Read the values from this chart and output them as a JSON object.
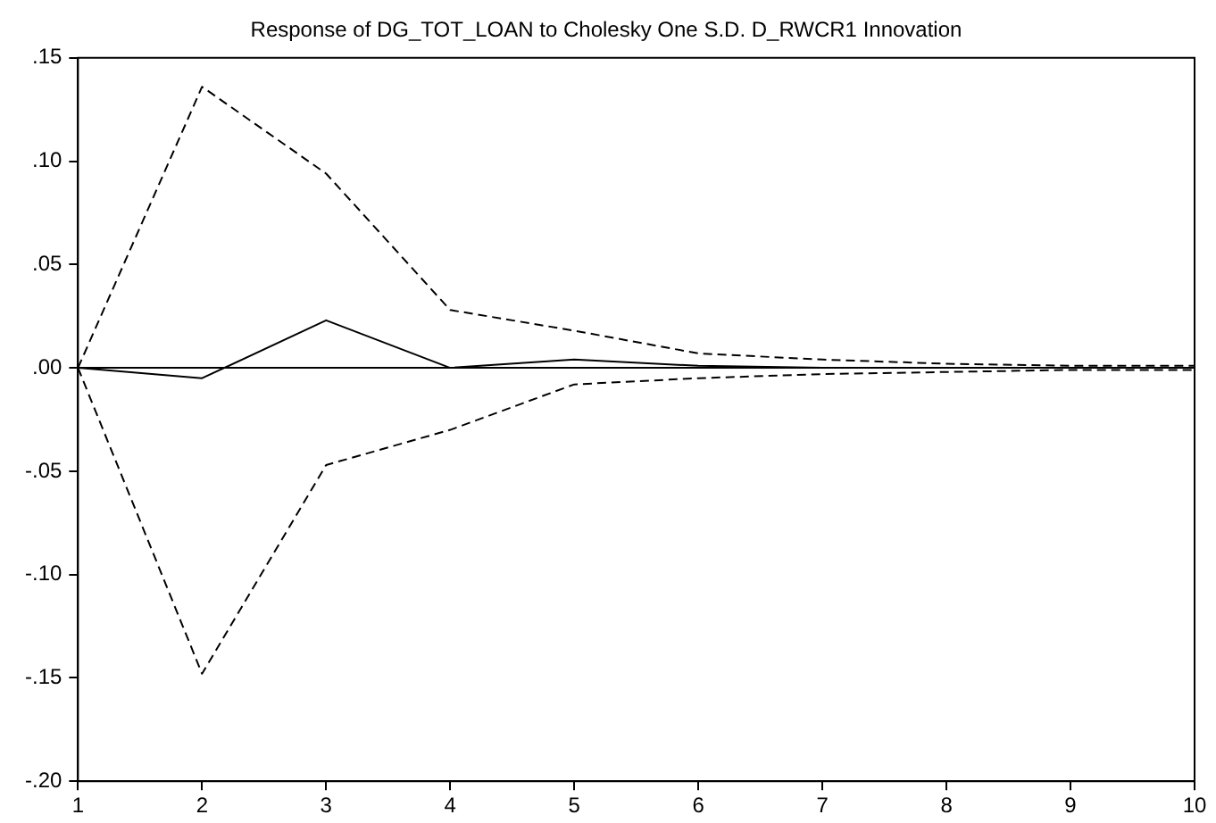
{
  "chart_data": {
    "type": "line",
    "title": "Response of DG_TOT_LOAN to Cholesky One S.D. D_RWCR1 Innovation",
    "x": [
      1,
      2,
      3,
      4,
      5,
      6,
      7,
      8,
      9,
      10
    ],
    "series": [
      {
        "color": "#000000",
        "line_style": "solid",
        "values": [
          0,
          -0.005,
          0.023,
          0,
          0.004,
          0.001,
          0,
          0,
          0,
          0
        ]
      },
      {
        "color": "#000000",
        "line_style": "dashed",
        "values": [
          0,
          0.136,
          0.094,
          0.028,
          0.018,
          0.007,
          0.004,
          0.002,
          0.001,
          0.001
        ]
      },
      {
        "color": "#000000",
        "line_style": "dashed",
        "values": [
          0,
          -0.148,
          -0.047,
          -0.03,
          -0.008,
          -0.005,
          -0.003,
          -0.002,
          -0.001,
          -0.001
        ]
      }
    ],
    "xlim": [
      1,
      10
    ],
    "xticks": [
      1,
      2,
      3,
      4,
      5,
      6,
      7,
      8,
      9,
      10
    ],
    "ylim": [
      -0.2,
      0.15
    ],
    "yticks": [
      {
        "value": -0.2,
        "label": "-.20"
      },
      {
        "value": -0.15,
        "label": "-.15"
      },
      {
        "value": -0.1,
        "label": "-.10"
      },
      {
        "value": -0.05,
        "label": "-.05"
      },
      {
        "value": 0,
        "label": ".00"
      },
      {
        "value": 0.05,
        "label": ".05"
      },
      {
        "value": 0.1,
        "label": ".10"
      },
      {
        "value": 0.15,
        "label": ".15"
      }
    ],
    "ref_lines": [
      {
        "axis": "y",
        "value": 0,
        "color": "#000000"
      }
    ],
    "grid": false,
    "legend": false,
    "marker": "none"
  }
}
